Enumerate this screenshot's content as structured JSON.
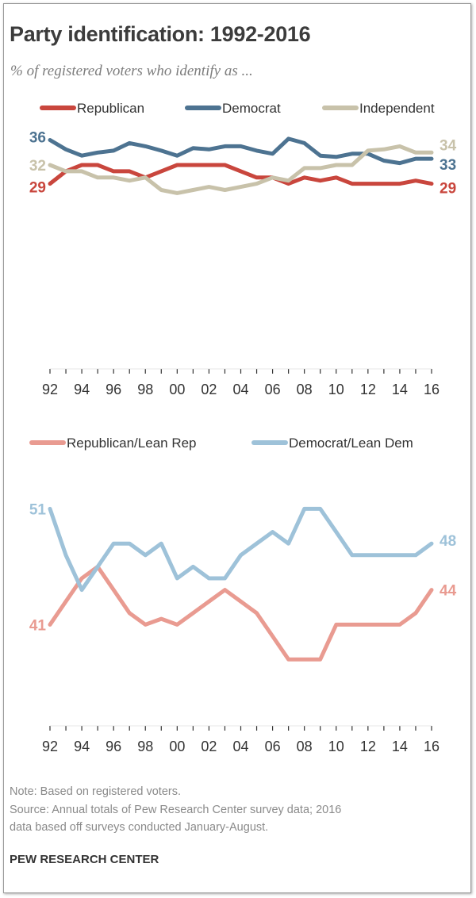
{
  "title": "Party identification: 1992-2016",
  "subtitle": "% of registered voters who identify as ...",
  "chart_data": [
    {
      "type": "line",
      "x": [
        92,
        93,
        94,
        95,
        96,
        97,
        98,
        99,
        0,
        1,
        2,
        3,
        4,
        5,
        6,
        7,
        8,
        9,
        10,
        11,
        12,
        13,
        14,
        15,
        16
      ],
      "xticks": [
        "92",
        "94",
        "96",
        "98",
        "00",
        "02",
        "04",
        "06",
        "08",
        "10",
        "12",
        "14",
        "16"
      ],
      "ylim": [
        0,
        40
      ],
      "series": [
        {
          "name": "Republican",
          "color": "#c9463d",
          "values": [
            29,
            31,
            32,
            32,
            31,
            31,
            30,
            31,
            32,
            32,
            32,
            32,
            31,
            30,
            30,
            29,
            30,
            29.5,
            30,
            29,
            29,
            29,
            29,
            29.5,
            29
          ],
          "start_label": "29",
          "end_label": "29"
        },
        {
          "name": "Democrat",
          "color": "#4d7391",
          "values": [
            36,
            34.5,
            33.5,
            34,
            34.3,
            35.5,
            35,
            34.3,
            33.5,
            34.7,
            34.5,
            35,
            35,
            34.3,
            33.8,
            36.2,
            35.5,
            33.5,
            33.3,
            33.8,
            33.8,
            32.7,
            32.3,
            33,
            33
          ],
          "start_label": "36",
          "end_label": "33"
        },
        {
          "name": "Independent",
          "color": "#c8c2aa",
          "values": [
            32,
            31,
            31,
            30,
            30,
            29.5,
            30,
            28,
            27.5,
            28,
            28.5,
            28,
            28.5,
            29,
            30,
            29.5,
            31.5,
            31.5,
            32,
            32,
            34.3,
            34.5,
            35,
            34,
            34
          ],
          "start_label": "32",
          "end_label": "34"
        }
      ]
    },
    {
      "type": "line",
      "x": [
        92,
        93,
        94,
        95,
        96,
        97,
        98,
        99,
        0,
        1,
        2,
        3,
        4,
        5,
        6,
        7,
        8,
        9,
        10,
        11,
        12,
        13,
        14,
        15,
        16
      ],
      "xticks": [
        "92",
        "94",
        "96",
        "98",
        "00",
        "02",
        "04",
        "06",
        "08",
        "10",
        "12",
        "14",
        "16"
      ],
      "ylim": [
        30,
        55
      ],
      "series": [
        {
          "name": "Republican/Lean Rep",
          "color": "#e99b91",
          "values": [
            41,
            43,
            45,
            46,
            44,
            42,
            41,
            41.5,
            41,
            42,
            43,
            44,
            43,
            42,
            40,
            38,
            38,
            38,
            41,
            41,
            41,
            41,
            41,
            42,
            44
          ],
          "start_label": "41",
          "end_label": "44"
        },
        {
          "name": "Democrat/Lean Dem",
          "color": "#9ec2d9",
          "values": [
            51,
            47,
            44,
            46,
            48,
            48,
            47,
            48,
            45,
            46,
            45,
            45,
            47,
            48,
            49,
            48,
            51,
            51,
            49,
            47,
            47,
            47,
            47,
            47,
            48
          ],
          "start_label": "51",
          "end_label": "48"
        }
      ]
    }
  ],
  "note": "Note: Based on registered voters.",
  "source_line1": "Source: Annual totals of Pew Research Center survey data; 2016",
  "source_line2": "data based off surveys conducted January-August.",
  "brand": "PEW RESEARCH CENTER"
}
